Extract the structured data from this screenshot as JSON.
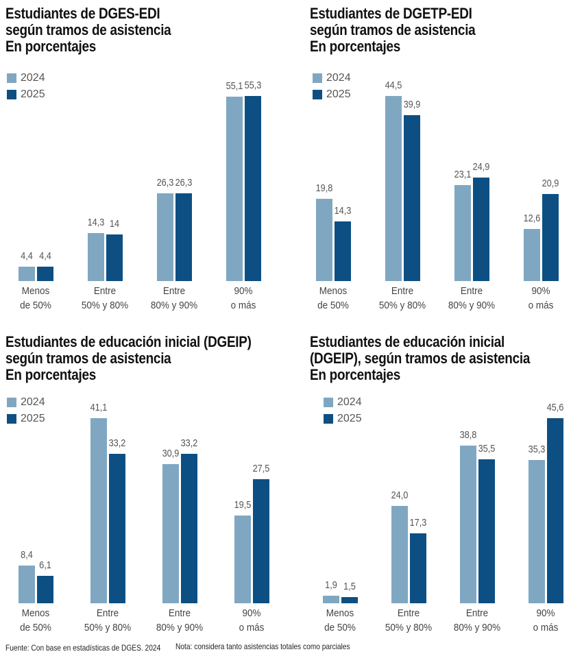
{
  "chart_data": [
    {
      "type": "bar",
      "title": "Estudiantes de DGES-EDI\nsegún tramos de asistencia",
      "subtitle": "En porcentajes",
      "categories": [
        "Menos\nde 50%",
        "Entre\n50% y 80%",
        "Entre\n80% y 90%",
        "90%\no más"
      ],
      "series": [
        {
          "name": "2024",
          "color": "#7fa7c1",
          "values": [
            4.4,
            14.3,
            26.3,
            55.1
          ],
          "value_labels": [
            "4,4",
            "14,3",
            "26,3",
            "55,1"
          ]
        },
        {
          "name": "2025",
          "color": "#0d4f82",
          "values": [
            4.4,
            14,
            26.3,
            55.3
          ],
          "value_labels": [
            "4,4",
            "14",
            "26,3",
            "55,3"
          ]
        }
      ]
    },
    {
      "type": "bar",
      "title": "Estudiantes de DGETP-EDI\nsegún tramos de asistencia",
      "subtitle": "En porcentajes",
      "categories": [
        "Menos\nde 50%",
        "Entre\n50% y 80%",
        "Entre\n80% y 90%",
        "90%\no más"
      ],
      "series": [
        {
          "name": "2024",
          "color": "#7fa7c1",
          "values": [
            19.8,
            44.5,
            23.1,
            12.6
          ],
          "value_labels": [
            "19,8",
            "44,5",
            "23,1",
            "12,6"
          ]
        },
        {
          "name": "2025",
          "color": "#0d4f82",
          "values": [
            14.3,
            39.9,
            24.9,
            20.9
          ],
          "value_labels": [
            "14,3",
            "39,9",
            "24,9",
            "20,9"
          ]
        }
      ]
    },
    {
      "type": "bar",
      "title": "Estudiantes de educación inicial (DGEIP)\nsegún tramos de asistencia",
      "subtitle": "En porcentajes",
      "categories": [
        "Menos\nde 50%",
        "Entre\n50% y 80%",
        "Entre\n80% y 90%",
        "90%\no más"
      ],
      "series": [
        {
          "name": "2024",
          "color": "#7fa7c1",
          "values": [
            8.4,
            41.1,
            30.9,
            19.5
          ],
          "value_labels": [
            "8,4",
            "41,1",
            "30,9",
            "19,5"
          ]
        },
        {
          "name": "2025",
          "color": "#0d4f82",
          "values": [
            6.1,
            33.2,
            33.2,
            27.5
          ],
          "value_labels": [
            "6,1",
            "33,2",
            "33,2",
            "27,5"
          ]
        }
      ]
    },
    {
      "type": "bar",
      "title": "Estudiantes de educación inicial\n(DGEIP), según tramos de asistencia",
      "subtitle": "En porcentajes",
      "categories": [
        "Menos\nde 50%",
        "Entre\n50% y 80%",
        "Entre\n80% y 90%",
        "90%\no más"
      ],
      "series": [
        {
          "name": "2024",
          "color": "#7fa7c1",
          "values": [
            1.9,
            24.0,
            38.8,
            35.3
          ],
          "value_labels": [
            "1,9",
            "24,0",
            "38,8",
            "35,3"
          ]
        },
        {
          "name": "2025",
          "color": "#0d4f82",
          "values": [
            1.5,
            17.3,
            35.5,
            45.6
          ],
          "value_labels": [
            "1,5",
            "17,3",
            "35,5",
            "45,6"
          ]
        }
      ]
    }
  ],
  "footer": {
    "source": "Fuente: Con base en estadísticas de DGES. 2024",
    "note": "Nota: considera tanto asistencias totales como parciales"
  }
}
